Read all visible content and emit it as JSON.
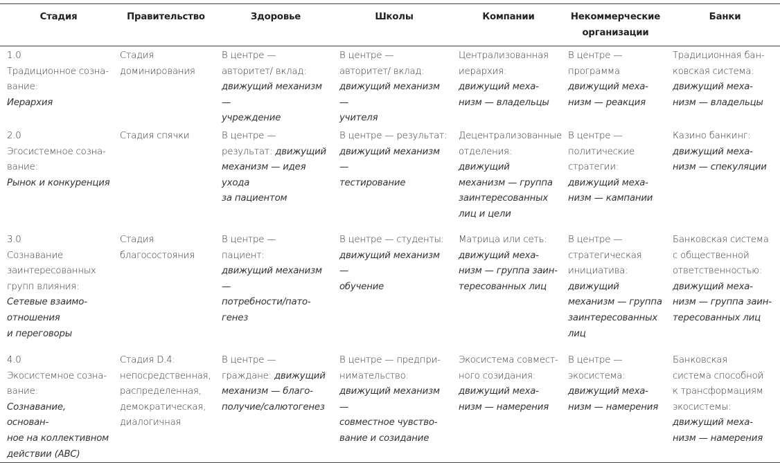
{
  "table": {
    "header": [
      "Стадия",
      "Правительство",
      "Здоровье",
      "Школы",
      "Компании",
      "Некоммерческие\nорганизации",
      "Банки"
    ],
    "rows": [
      [
        {
          "plain": "1.0\nТрадиционное созна-\nвание:\n",
          "italic": "Иерархия"
        },
        {
          "plain": "Стадия\nдоминирования"
        },
        {
          "plain": "В центре —\nавторитет/ вклад:\n",
          "italic": "движущий механизм —\nучреждение"
        },
        {
          "plain": "В центре —\nавторитет/ вклад:\n",
          "italic": "движущий механизм —\nучителя"
        },
        {
          "plain": "Централизованная\nиерархия:\n",
          "italic": "движущий меха-\nнизм — владельцы"
        },
        {
          "plain": "В центре —\nпрограмма\n",
          "italic": "движущий меха-\nнизм — реакция"
        },
        {
          "plain": "Традиционная бан-\nковская система:\n",
          "italic": "движущий меха-\nнизм — владельцы"
        }
      ],
      [
        {
          "plain": "2.0\nЭгосистемное созна-\nвание:\n",
          "italic": "Рынок и конкуренция"
        },
        {
          "plain": "Стадия спячки"
        },
        {
          "plain": "В центре —\nрезультат: ",
          "italic": "движущий\nмеханизм — идея ухода\nза пациентом"
        },
        {
          "plain": "В центре — результат:\n",
          "italic": "движущий механизм —\nтестирование"
        },
        {
          "plain": "Децентрализованные\nотделения:\n",
          "italic": "движущий\nмеханизм — группа\nзаинтересованных\nлиц и цели"
        },
        {
          "plain": "В центре —\nполитические\nстратегии:\n",
          "italic": "движущий меха-\nнизм — кампании"
        },
        {
          "plain": "Казино банкинг:\n",
          "italic": "движущий меха-\nнизм — спекуляции"
        }
      ],
      [
        {
          "plain": "3.0\nСознавание\nзаинтересованных\nгрупп влияния:\n",
          "italic": "Сетевые взаимо-\nотношения\nи переговоры"
        },
        {
          "plain": "Стадия\nблагосостояния"
        },
        {
          "plain": "В центре —\nпациент:\n",
          "italic": "движущий механизм —\nпотребности/пато-\nгенез"
        },
        {
          "plain": "В центре — студенты:\n",
          "italic": "движущий механизм —\nобучение"
        },
        {
          "plain": "Матрица или сеть:\n",
          "italic": "движущий меха-\nнизм — группа заин-\nтересованных лиц"
        },
        {
          "plain": "В центре —\nстратегическая\nинициатива:\n",
          "italic": "движущий\nмеханизм — группа\nзаинтересованных\nлиц"
        },
        {
          "plain": "Банковская система\nс общественной\nответственностью:\n",
          "italic": "движущий меха-\nнизм — группа заин-\nтересованных лиц"
        }
      ],
      [
        {
          "plain": "4.0\nЭкосистемное созна-\nвание:\n",
          "italic": "Сознавание, основан-\nное на коллективном\nдействии (ABC)"
        },
        {
          "plain": "Стадия D.4:\nнепосредственная,\nраспределенная,\nдемократическая,\nдиалогичная"
        },
        {
          "plain": "В центре —\nграждане: ",
          "italic": "движущий\nмеханизм — благо-\nполучие/салютогенез"
        },
        {
          "plain": "В центре — предпри-\nнимательство:\n",
          "italic": "движущий механизм —\nсовместное чувство-\nвание и созидание"
        },
        {
          "plain": "Экосистема совмест-\nного созидания:\n",
          "italic": "движущий меха-\nнизм — намерения"
        },
        {
          "plain": "В центре —\nэкосистема:\n",
          "italic": "движущий меха-\nнизм — намерения"
        },
        {
          "plain": "Банковская\nсистема способной\nк трансформациям\nэкосистемы:\n",
          "italic": "движущий меха-\nнизм — намерения"
        }
      ]
    ]
  }
}
